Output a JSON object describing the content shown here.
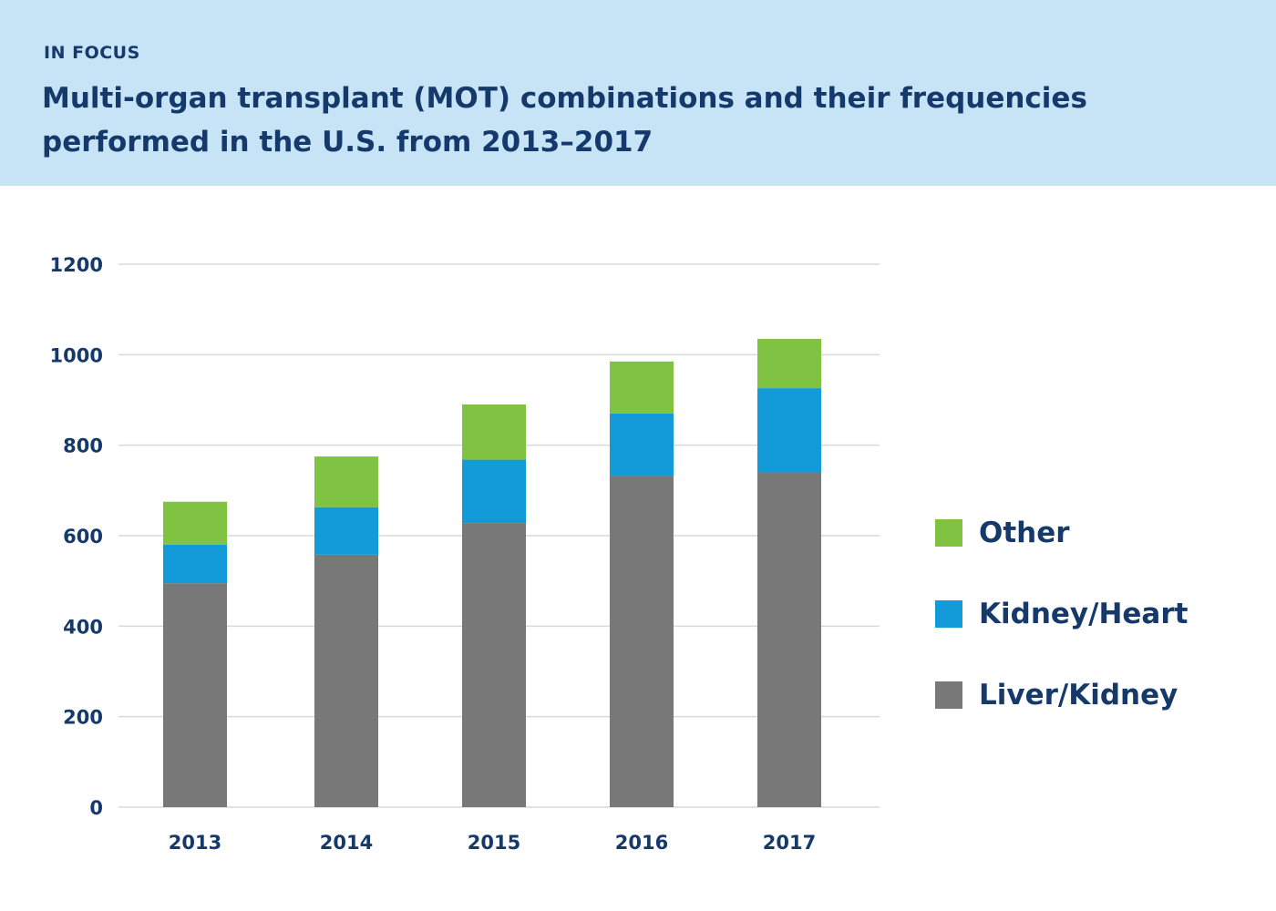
{
  "header": {
    "kicker": "IN FOCUS",
    "title": "Multi-organ transplant (MOT) combinations and their frequencies performed in the U.S. from 2013–2017"
  },
  "colors": {
    "banner": "#c6e4f6",
    "text": "#14396a",
    "grid": "#d9d9d9"
  },
  "chart_data": {
    "type": "bar",
    "stacked": true,
    "categories": [
      "2013",
      "2014",
      "2015",
      "2016",
      "2017"
    ],
    "series": [
      {
        "name": "Liver/Kidney",
        "color": "#787878",
        "values": [
          495,
          558,
          628,
          732,
          740
        ]
      },
      {
        "name": "Kidney/Heart",
        "color": "#139bd9",
        "values": [
          85,
          105,
          140,
          138,
          186
        ]
      },
      {
        "name": "Other",
        "color": "#80c342",
        "values": [
          95,
          112,
          122,
          115,
          109
        ]
      }
    ],
    "ylim": [
      0,
      1200
    ],
    "yticks": [
      "0",
      "200",
      "400",
      "600",
      "800",
      "1000",
      "1200"
    ],
    "grid": true,
    "legend_position": "right",
    "legend_order": [
      "Other",
      "Kidney/Heart",
      "Liver/Kidney"
    ]
  }
}
